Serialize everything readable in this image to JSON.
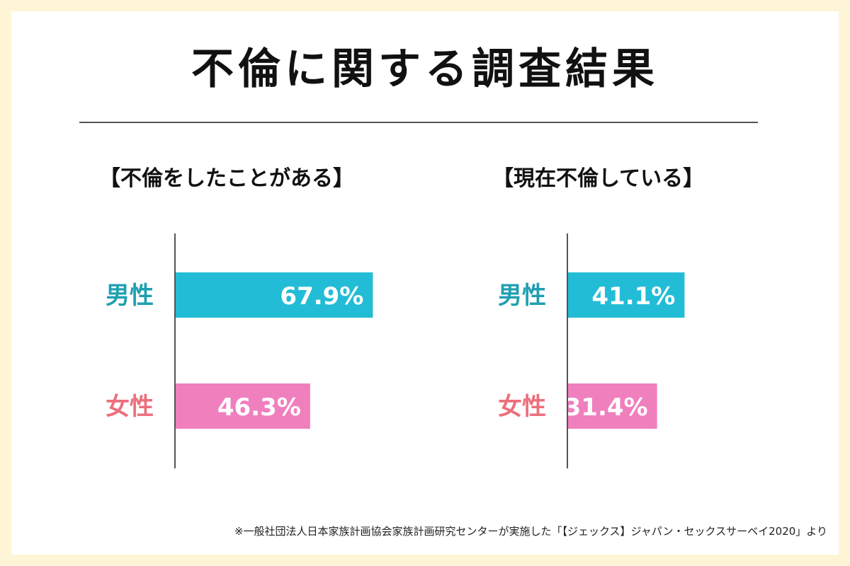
{
  "title": "不倫に関する調査結果",
  "colors": {
    "background": "#fdf5d6",
    "panel": "#ffffff",
    "male": "#22bcd6",
    "female": "#f07fbe",
    "male_label": "#1f9fb2",
    "female_label": "#ec6f7c",
    "axis": "#555555"
  },
  "chart_data": [
    {
      "type": "bar",
      "orientation": "horizontal",
      "title": "【不倫をしたことがある】",
      "categories": [
        "男性",
        "女性"
      ],
      "values": [
        67.9,
        46.3
      ],
      "value_labels": [
        "67.9%",
        "46.3%"
      ],
      "unit": "%",
      "xlim": [
        0,
        100
      ],
      "grid": false
    },
    {
      "type": "bar",
      "orientation": "horizontal",
      "title": "【現在不倫している】",
      "categories": [
        "男性",
        "女性"
      ],
      "values": [
        41.1,
        31.4
      ],
      "value_labels": [
        "41.1%",
        "31.4%"
      ],
      "unit": "%",
      "xlim": [
        0,
        100
      ],
      "grid": false
    }
  ],
  "footnote": "※一般社団法人日本家族計画協会家族計画研究センターが実施した「【ジェックス】ジャパン・セックスサーベイ2020」より"
}
